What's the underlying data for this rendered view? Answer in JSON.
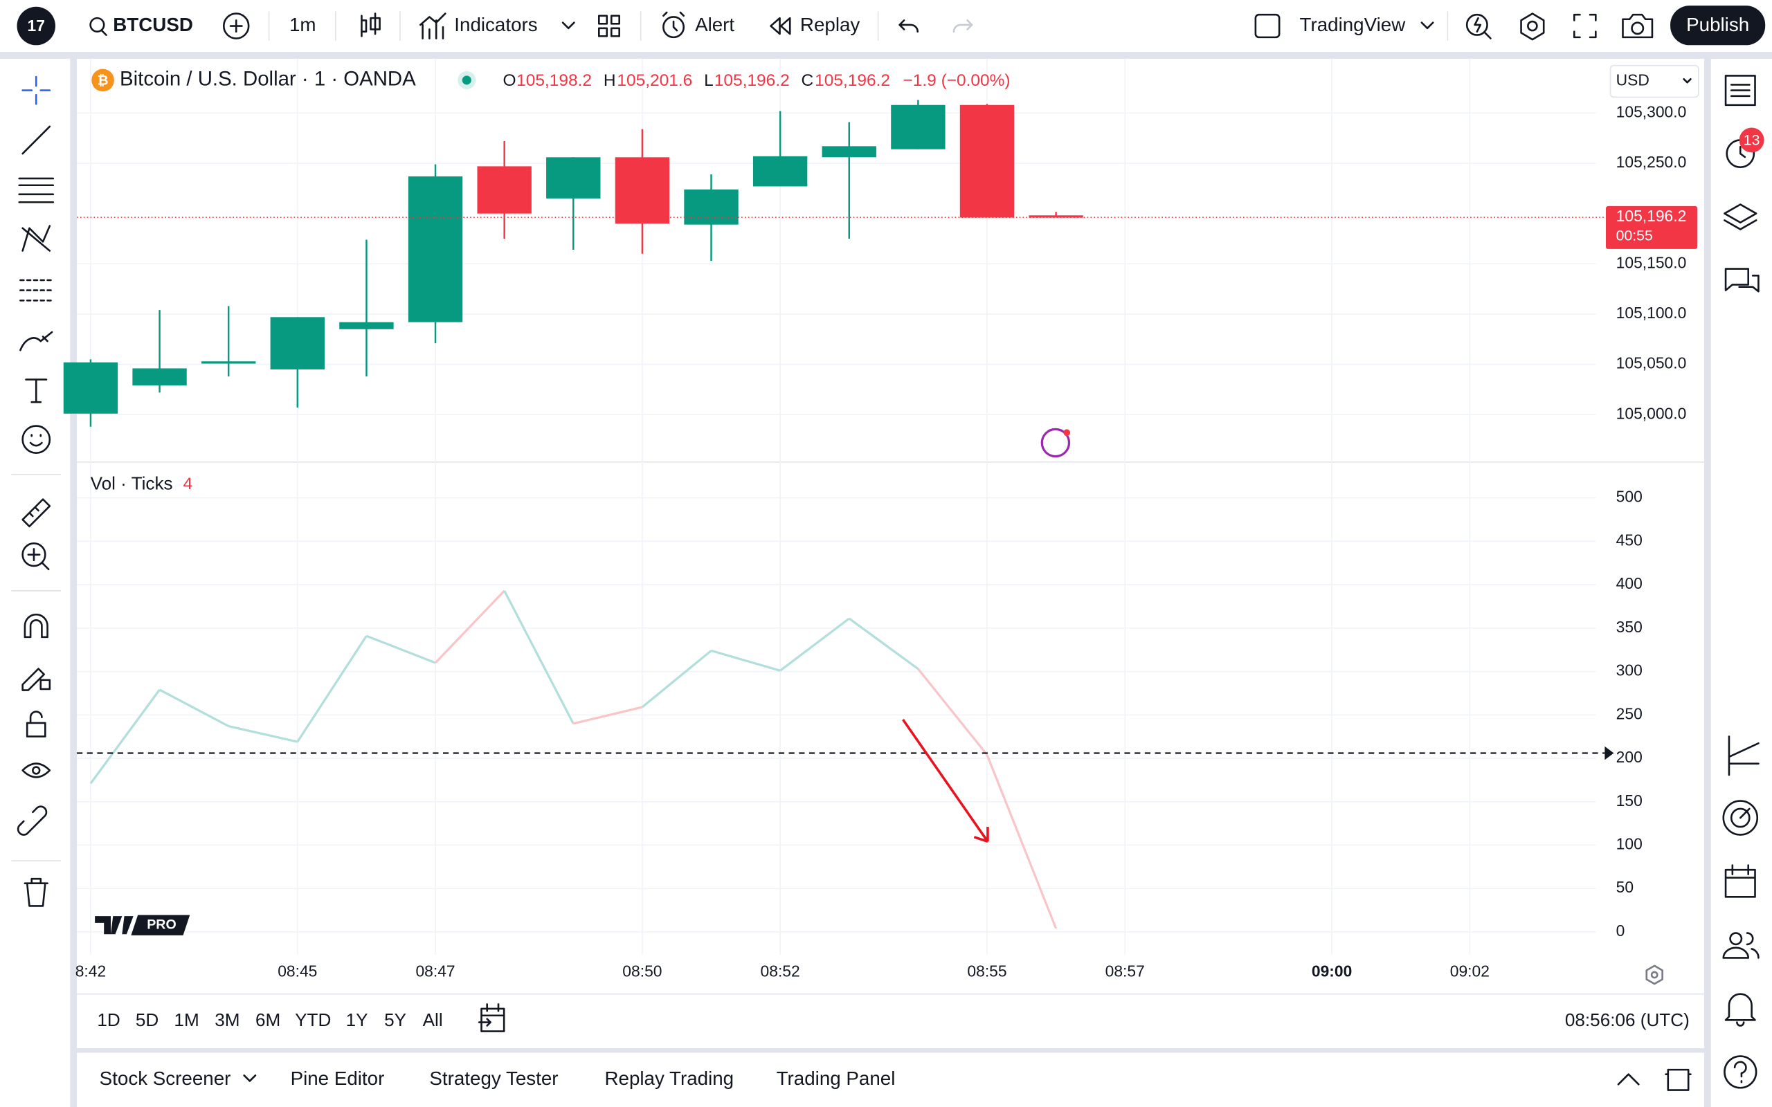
{
  "top_bar": {
    "symbol": "BTCUSD",
    "interval": "1m",
    "indicators": "Indicators",
    "alert": "Alert",
    "replay": "Replay",
    "layout_name": "TradingView",
    "publish": "Publish"
  },
  "legend": {
    "title": "Bitcoin / U.S. Dollar · 1 · OANDA",
    "ohlc": [
      {
        "key": "O",
        "value": "105,198.2"
      },
      {
        "key": "H",
        "value": "105,201.6"
      },
      {
        "key": "L",
        "value": "105,196.2"
      },
      {
        "key": "C",
        "value": "105,196.2"
      }
    ],
    "change": "−1.9 (−0.00%)",
    "currency": "USD",
    "watermark": "PRO"
  },
  "chart_data": [
    {
      "type": "candlestick",
      "up_color": "#089981",
      "down_color": "#f23645",
      "x": [
        0,
        1,
        2,
        3,
        4,
        5,
        6,
        7,
        8,
        9,
        10,
        11,
        12,
        13,
        14
      ],
      "open": [
        105001,
        105029,
        105053,
        105045,
        105085,
        105092,
        105247,
        105215,
        105256,
        105189,
        105227,
        105256,
        105264,
        105308,
        105198.2
      ],
      "high": [
        105055,
        105104,
        105108,
        105097,
        105174,
        105249,
        105272,
        105256,
        105284,
        105239,
        105302,
        105291,
        105313,
        105309,
        105201.6
      ],
      "low": [
        104988,
        105022,
        105038,
        105007,
        105038,
        105071,
        105175,
        105164,
        105160,
        105153,
        105227,
        105175,
        105264,
        105196,
        105196.2
      ],
      "close": [
        105052,
        105046,
        105053,
        105097,
        105092,
        105237,
        105200,
        105256,
        105190,
        105224,
        105257,
        105267,
        105308,
        105196,
        105196.2
      ],
      "xlim": [
        -0.2,
        23.4
      ],
      "xticks": [
        {
          "value": 0,
          "label": "8:42"
        },
        {
          "value": 3,
          "label": "08:45"
        },
        {
          "value": 5,
          "label": "08:47"
        },
        {
          "value": 8,
          "label": "08:50"
        },
        {
          "value": 10,
          "label": "08:52"
        },
        {
          "value": 13,
          "label": "08:55"
        },
        {
          "value": 15,
          "label": "08:57"
        },
        {
          "value": 18,
          "label": "09:00"
        },
        {
          "value": 20,
          "label": "09:02"
        }
      ],
      "ylim": [
        104954,
        105354
      ],
      "yticks": [
        {
          "value": 105300,
          "label": "105,300.0"
        },
        {
          "value": 105250,
          "label": "105,250.0"
        },
        {
          "value": 105150,
          "label": "105,150.0"
        },
        {
          "value": 105100,
          "label": "105,100.0"
        },
        {
          "value": 105050,
          "label": "105,050.0"
        },
        {
          "value": 105000,
          "label": "105,000.0"
        }
      ],
      "last_price": {
        "value": 105196.2,
        "label": "105,196.2"
      },
      "countdown": "00:55"
    },
    {
      "type": "line",
      "title": "Vol · Ticks",
      "up_color": "#b2dfdb",
      "down_color": "#f9c5c8",
      "x": [
        0,
        1,
        2,
        3,
        4,
        5,
        6,
        7,
        8,
        9,
        10,
        11,
        12,
        13,
        14
      ],
      "values": [
        171,
        279,
        237,
        219,
        341,
        310,
        393,
        240,
        259,
        324,
        301,
        361,
        303,
        204,
        4
      ],
      "xlim": [
        -0.2,
        23.4
      ],
      "ylim": [
        -26,
        540
      ],
      "yticks": [
        500,
        450,
        400,
        350,
        300,
        250,
        200,
        150,
        100,
        50,
        0
      ],
      "reference_line": 206
    }
  ],
  "ranges": [
    "1D",
    "5D",
    "1M",
    "3M",
    "6M",
    "YTD",
    "1Y",
    "5Y",
    "All"
  ],
  "clock": "08:56:06 (UTC)",
  "bottom_tabs": [
    "Stock Screener",
    "Pine Editor",
    "Strategy Tester",
    "Replay Trading",
    "Trading Panel"
  ],
  "notifications": "13"
}
